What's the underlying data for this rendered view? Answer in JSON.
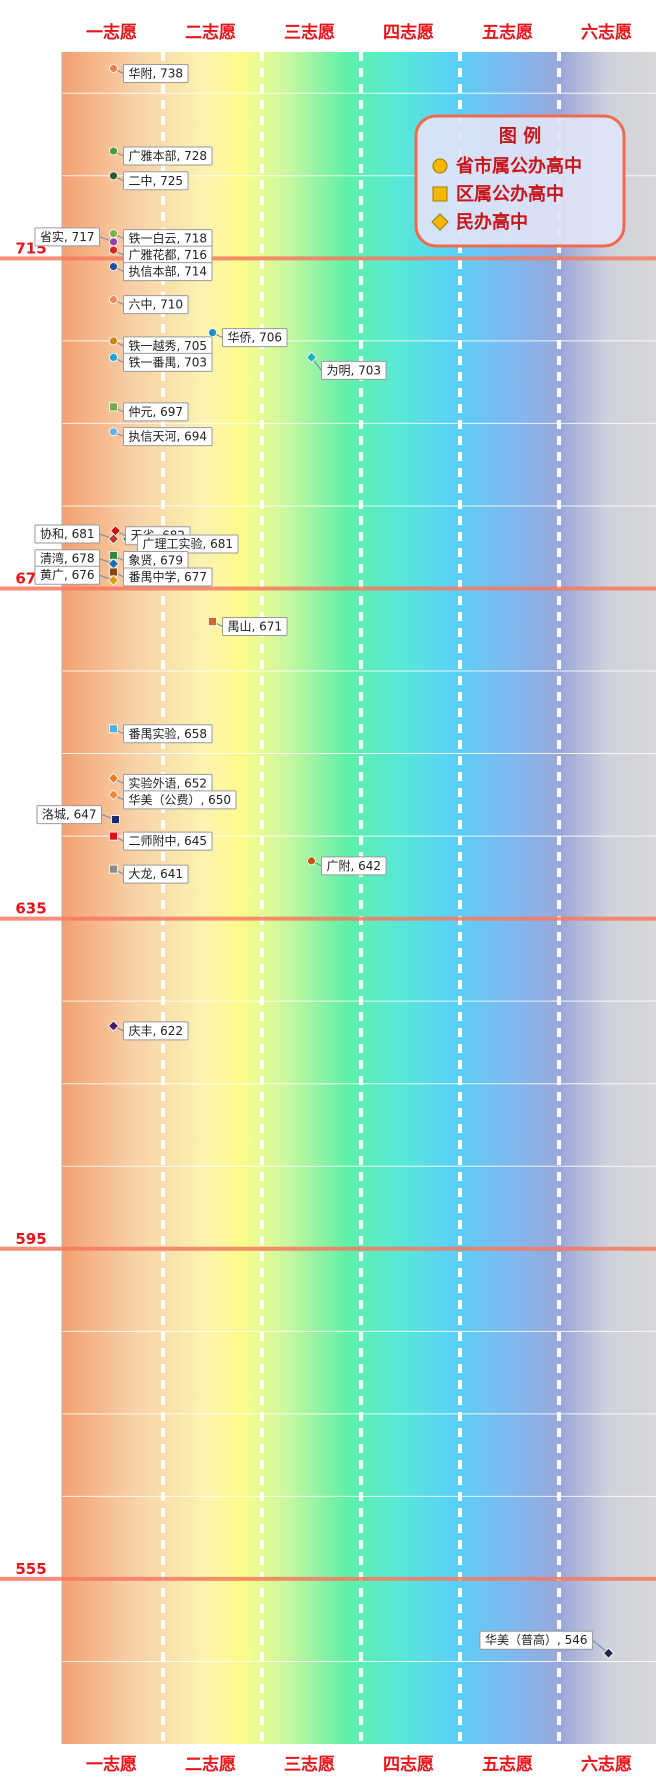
{
  "chart_data": {
    "type": "scatter",
    "title": "",
    "xlabel": "",
    "ylabel": "",
    "categories": [
      "一志愿",
      "二志愿",
      "三志愿",
      "四志愿",
      "五志愿",
      "六志愿"
    ],
    "ylim": [
      535,
      740
    ],
    "y_ticks": [
      715,
      675,
      635,
      595,
      555
    ],
    "legend": {
      "title": "图 例",
      "placement": "top-right",
      "entries": [
        {
          "label": "省市属公办高中",
          "shape": "circle",
          "color": "#f5b800"
        },
        {
          "label": "区属公办高中",
          "shape": "square",
          "color": "#f5b800"
        },
        {
          "label": "民办高中",
          "shape": "diamond",
          "color": "#f5b800"
        }
      ]
    },
    "points": [
      {
        "name": "华附",
        "x": 1,
        "y": 738,
        "shape": "circle",
        "color": "#e8834a",
        "label": "华附, 738",
        "side": "right"
      },
      {
        "name": "广雅本部",
        "x": 1,
        "y": 728,
        "shape": "circle",
        "color": "#4e9a3b",
        "label": "广雅本部, 728",
        "side": "right"
      },
      {
        "name": "二中",
        "x": 1,
        "y": 725,
        "shape": "circle",
        "color": "#2e5b2e",
        "label": "二中, 725",
        "side": "right"
      },
      {
        "name": "铁一白云",
        "x": 1,
        "y": 718,
        "shape": "circle",
        "color": "#7cb342",
        "label": "铁一白云, 718",
        "side": "right"
      },
      {
        "name": "省实",
        "x": 1,
        "y": 717,
        "shape": "circle",
        "color": "#8e44ad",
        "label": "省实, 717",
        "side": "left"
      },
      {
        "name": "广雅花都",
        "x": 1,
        "y": 716,
        "shape": "circle",
        "color": "#e02020",
        "label": "广雅花都, 716",
        "side": "right"
      },
      {
        "name": "执信本部",
        "x": 1,
        "y": 714,
        "shape": "circle",
        "color": "#1f4fa0",
        "label": "执信本部, 714",
        "side": "right"
      },
      {
        "name": "六中",
        "x": 1,
        "y": 710,
        "shape": "circle",
        "color": "#f08a5d",
        "label": "六中, 710",
        "side": "right"
      },
      {
        "name": "华侨",
        "x": 2,
        "y": 706,
        "shape": "circle",
        "color": "#1e90c8",
        "label": "华侨, 706",
        "side": "right"
      },
      {
        "name": "铁一越秀",
        "x": 1,
        "y": 705,
        "shape": "circle",
        "color": "#c8860a",
        "label": "铁一越秀, 705",
        "side": "right"
      },
      {
        "name": "为明",
        "x": 3,
        "y": 703,
        "shape": "diamond",
        "color": "#17b3c8",
        "label": "为明, 703",
        "side": "right-below"
      },
      {
        "name": "铁一番禺",
        "x": 1,
        "y": 703,
        "shape": "circle",
        "color": "#18a4d8",
        "label": "铁一番禺, 703",
        "side": "right"
      },
      {
        "name": "仲元",
        "x": 1,
        "y": 697,
        "shape": "square",
        "color": "#6fae4a",
        "label": "仲元, 697",
        "side": "right"
      },
      {
        "name": "执信天河",
        "x": 1,
        "y": 694,
        "shape": "circle",
        "color": "#6ab0e0",
        "label": "执信天河, 694",
        "side": "right"
      },
      {
        "name": "天省",
        "x": 1,
        "y": 682,
        "shape": "diamond",
        "color": "#d01010",
        "label": "天省, 682",
        "side": "right"
      },
      {
        "name": "广理工实验",
        "x": 1,
        "y": 681,
        "shape": "diamond",
        "color": "#3a63b8",
        "label": "广理工实验, 681",
        "side": "right"
      },
      {
        "name": "协和",
        "x": 1,
        "y": 681,
        "shape": "diamond",
        "color": "#c0392b",
        "label": "协和, 681",
        "side": "left"
      },
      {
        "name": "象贤",
        "x": 1,
        "y": 679,
        "shape": "square",
        "color": "#2e8b3e",
        "label": "象贤, 679",
        "side": "right"
      },
      {
        "name": "清湾",
        "x": 1,
        "y": 678,
        "shape": "diamond",
        "color": "#1b6fa8",
        "label": "清湾, 678",
        "side": "left"
      },
      {
        "name": "番禺中学",
        "x": 1,
        "y": 677,
        "shape": "square",
        "color": "#8b4513",
        "label": "番禺中学, 677",
        "side": "right"
      },
      {
        "name": "黄广",
        "x": 1,
        "y": 676,
        "shape": "diamond",
        "color": "#d4a017",
        "label": "黄广, 676",
        "side": "left"
      },
      {
        "name": "禺山",
        "x": 2,
        "y": 671,
        "shape": "square",
        "color": "#d2691e",
        "label": "禺山, 671",
        "side": "right"
      },
      {
        "name": "番禺实验",
        "x": 1,
        "y": 658,
        "shape": "square",
        "color": "#4ab0e8",
        "label": "番禺实验, 658",
        "side": "right"
      },
      {
        "name": "实验外语",
        "x": 1,
        "y": 652,
        "shape": "diamond",
        "color": "#e87a2a",
        "label": "实验外语, 652",
        "side": "right"
      },
      {
        "name": "华美（公费）",
        "x": 1,
        "y": 650,
        "shape": "diamond",
        "color": "#f08a3a",
        "label": "华美（公费）, 650",
        "side": "right"
      },
      {
        "name": "洛城",
        "x": 1,
        "y": 647,
        "shape": "square",
        "color": "#1a2a6c",
        "label": "洛城, 647",
        "side": "left"
      },
      {
        "name": "二师附中",
        "x": 1,
        "y": 645,
        "shape": "square",
        "color": "#e01010",
        "label": "二师附中, 645",
        "side": "right"
      },
      {
        "name": "广附",
        "x": 3,
        "y": 642,
        "shape": "circle",
        "color": "#c8580a",
        "label": "广附, 642",
        "side": "right"
      },
      {
        "name": "大龙",
        "x": 1,
        "y": 641,
        "shape": "square",
        "color": "#8a8a8a",
        "label": "大龙, 641",
        "side": "right"
      },
      {
        "name": "庆丰",
        "x": 1,
        "y": 622,
        "shape": "diamond",
        "color": "#4a1a6a",
        "label": "庆丰, 622",
        "side": "right"
      },
      {
        "name": "华美（普高）",
        "x": 6,
        "y": 546,
        "shape": "diamond",
        "color": "#1a2a4a",
        "label": "华美（普高）, 546",
        "side": "left"
      }
    ]
  }
}
